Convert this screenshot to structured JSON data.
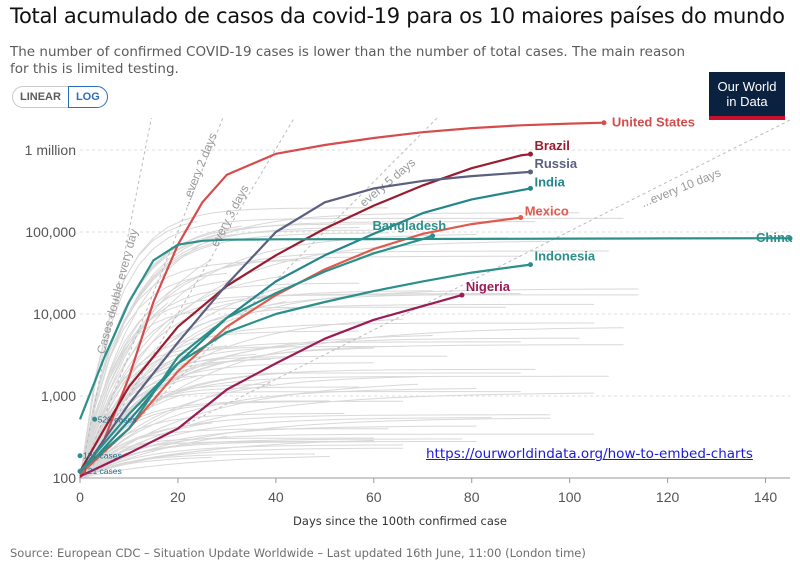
{
  "title": "Total acumulado de casos da covid-19 para os 10 maiores países do mundo",
  "subtitle": "The number of confirmed COVID-19 cases is lower than the number of total cases. The main reason for this is limited testing.",
  "scale_toggle": {
    "linear": "LINEAR",
    "log": "LOG",
    "selected": "LOG"
  },
  "logo": {
    "line1": "Our World",
    "line2": "in Data",
    "bg_color": "#0b2140",
    "accent_color": "#c8102e"
  },
  "link": "https://ourworldindata.org/how-to-embed-charts",
  "source": "Source: European CDC – Situation Update Worldwide – Last updated 16th June, 11:00 (London time)",
  "chart_data": {
    "type": "line",
    "y_scale": "log",
    "xlabel": "Days since the 100th confirmed case",
    "ylabel": "",
    "xlim": [
      0,
      145
    ],
    "ylim": [
      100,
      2500000
    ],
    "x_ticks": [
      0,
      20,
      40,
      60,
      80,
      100,
      120,
      140
    ],
    "x_tick_labels": [
      "0",
      "20",
      "40",
      "60",
      "80",
      "100",
      "120",
      "140"
    ],
    "y_ticks": [
      100,
      1000,
      10000,
      100000,
      1000000
    ],
    "y_tick_labels": [
      "100",
      "1,000",
      "10,000",
      "100,000",
      "1 million"
    ],
    "grid": "horizontal dashed",
    "reference_lines": [
      {
        "label": "Cases double every day",
        "doubling_days": 1
      },
      {
        "label": "...every 2 days",
        "doubling_days": 2
      },
      {
        "label": "every 3 days",
        "doubling_days": 3
      },
      {
        "label": "every 5 days",
        "doubling_days": 5
      },
      {
        "label": "...every 10 days",
        "doubling_days": 10
      }
    ],
    "start_annotations": [
      {
        "label": "520 cases",
        "x": 3,
        "y": 520
      },
      {
        "label": "187 cases",
        "x": 0,
        "y": 187
      },
      {
        "label": "121 cases",
        "x": 0,
        "y": 121
      }
    ],
    "series": [
      {
        "name": "United States",
        "color": "#d64c4c",
        "x": [
          0,
          5,
          10,
          15,
          20,
          25,
          30,
          40,
          50,
          60,
          70,
          80,
          90,
          100,
          107
        ],
        "y": [
          100,
          300,
          1700,
          14000,
          70000,
          230000,
          500000,
          900000,
          1150000,
          1400000,
          1650000,
          1850000,
          2000000,
          2100000,
          2150000
        ]
      },
      {
        "name": "Brazil",
        "color": "#9b1b30",
        "x": [
          0,
          5,
          10,
          20,
          30,
          40,
          50,
          60,
          70,
          80,
          90,
          92
        ],
        "y": [
          120,
          400,
          1300,
          7000,
          22000,
          52000,
          110000,
          210000,
          370000,
          600000,
          860000,
          890000
        ]
      },
      {
        "name": "Russia",
        "color": "#5b5f80",
        "x": [
          0,
          5,
          10,
          20,
          30,
          40,
          50,
          60,
          70,
          80,
          92
        ],
        "y": [
          110,
          300,
          800,
          4500,
          23000,
          100000,
          230000,
          340000,
          420000,
          480000,
          540000
        ]
      },
      {
        "name": "India",
        "color": "#24858a",
        "x": [
          0,
          10,
          20,
          30,
          40,
          50,
          60,
          70,
          80,
          92
        ],
        "y": [
          110,
          500,
          2500,
          9000,
          25000,
          52000,
          95000,
          170000,
          250000,
          340000
        ]
      },
      {
        "name": "Mexico",
        "color": "#e05a4e",
        "x": [
          0,
          10,
          20,
          30,
          40,
          50,
          60,
          70,
          80,
          90
        ],
        "y": [
          110,
          400,
          2000,
          7000,
          17000,
          35000,
          62000,
          95000,
          125000,
          150000
        ]
      },
      {
        "name": "Bangladesh",
        "color": "#2b8f8a",
        "x": [
          0,
          10,
          20,
          30,
          40,
          50,
          60,
          70,
          72
        ],
        "y": [
          120,
          400,
          3000,
          9000,
          18000,
          33000,
          55000,
          82000,
          90000
        ]
      },
      {
        "name": "China",
        "color": "#2b8f8a",
        "x": [
          0,
          5,
          10,
          15,
          20,
          25,
          30,
          40,
          60,
          80,
          100,
          120,
          145
        ],
        "y": [
          520,
          3000,
          14000,
          45000,
          70000,
          78000,
          80500,
          81500,
          82000,
          82500,
          83000,
          83500,
          84000
        ]
      },
      {
        "name": "Indonesia",
        "color": "#2b8f8a",
        "x": [
          0,
          10,
          20,
          30,
          40,
          50,
          60,
          70,
          80,
          92
        ],
        "y": [
          120,
          600,
          2500,
          6000,
          10000,
          14000,
          19000,
          25000,
          32000,
          40000
        ]
      },
      {
        "name": "Nigeria",
        "color": "#9b1b55",
        "x": [
          0,
          10,
          20,
          30,
          40,
          50,
          60,
          70,
          78
        ],
        "y": [
          105,
          200,
          400,
          1200,
          2500,
          5000,
          8500,
          12500,
          17000
        ]
      }
    ]
  }
}
